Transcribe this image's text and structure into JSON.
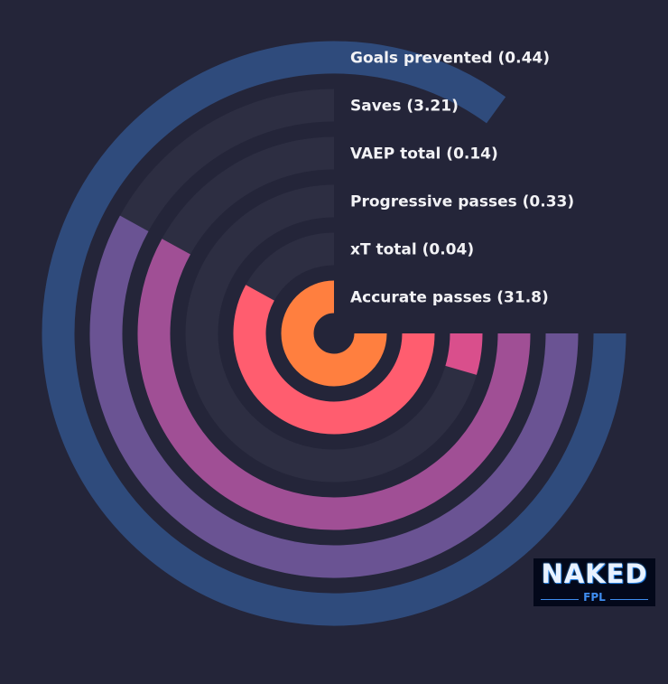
{
  "chart_data": {
    "type": "radial-bar",
    "series": [
      {
        "label": "Accurate passes (31.8)",
        "metric": "Accurate passes",
        "value": 31.8,
        "fraction": 0.75,
        "color": "#ff7f3f"
      },
      {
        "label": "xT total (0.04)",
        "metric": "xT total",
        "value": 0.04,
        "fraction": 0.58,
        "color": "#ff5d6f"
      },
      {
        "label": "Progressive passes (0.33)",
        "metric": "Progressive passes",
        "value": 0.33,
        "fraction": 0.045,
        "color": "#d94f8c"
      },
      {
        "label": "VAEP total (0.14)",
        "metric": "VAEP total",
        "value": 0.14,
        "fraction": 0.58,
        "color": "#a04f95"
      },
      {
        "label": "Saves (3.21)",
        "metric": "Saves",
        "value": 3.21,
        "fraction": 0.58,
        "color": "#6a5393"
      },
      {
        "label": "Goals prevented (0.44)",
        "metric": "Goals prevented",
        "value": 0.44,
        "fraction": 0.85,
        "color": "#2f4b7c"
      }
    ],
    "track_color": "#2d2e42",
    "background": "#242539"
  },
  "logo": {
    "word": "NAKED",
    "sub": "FPL"
  }
}
